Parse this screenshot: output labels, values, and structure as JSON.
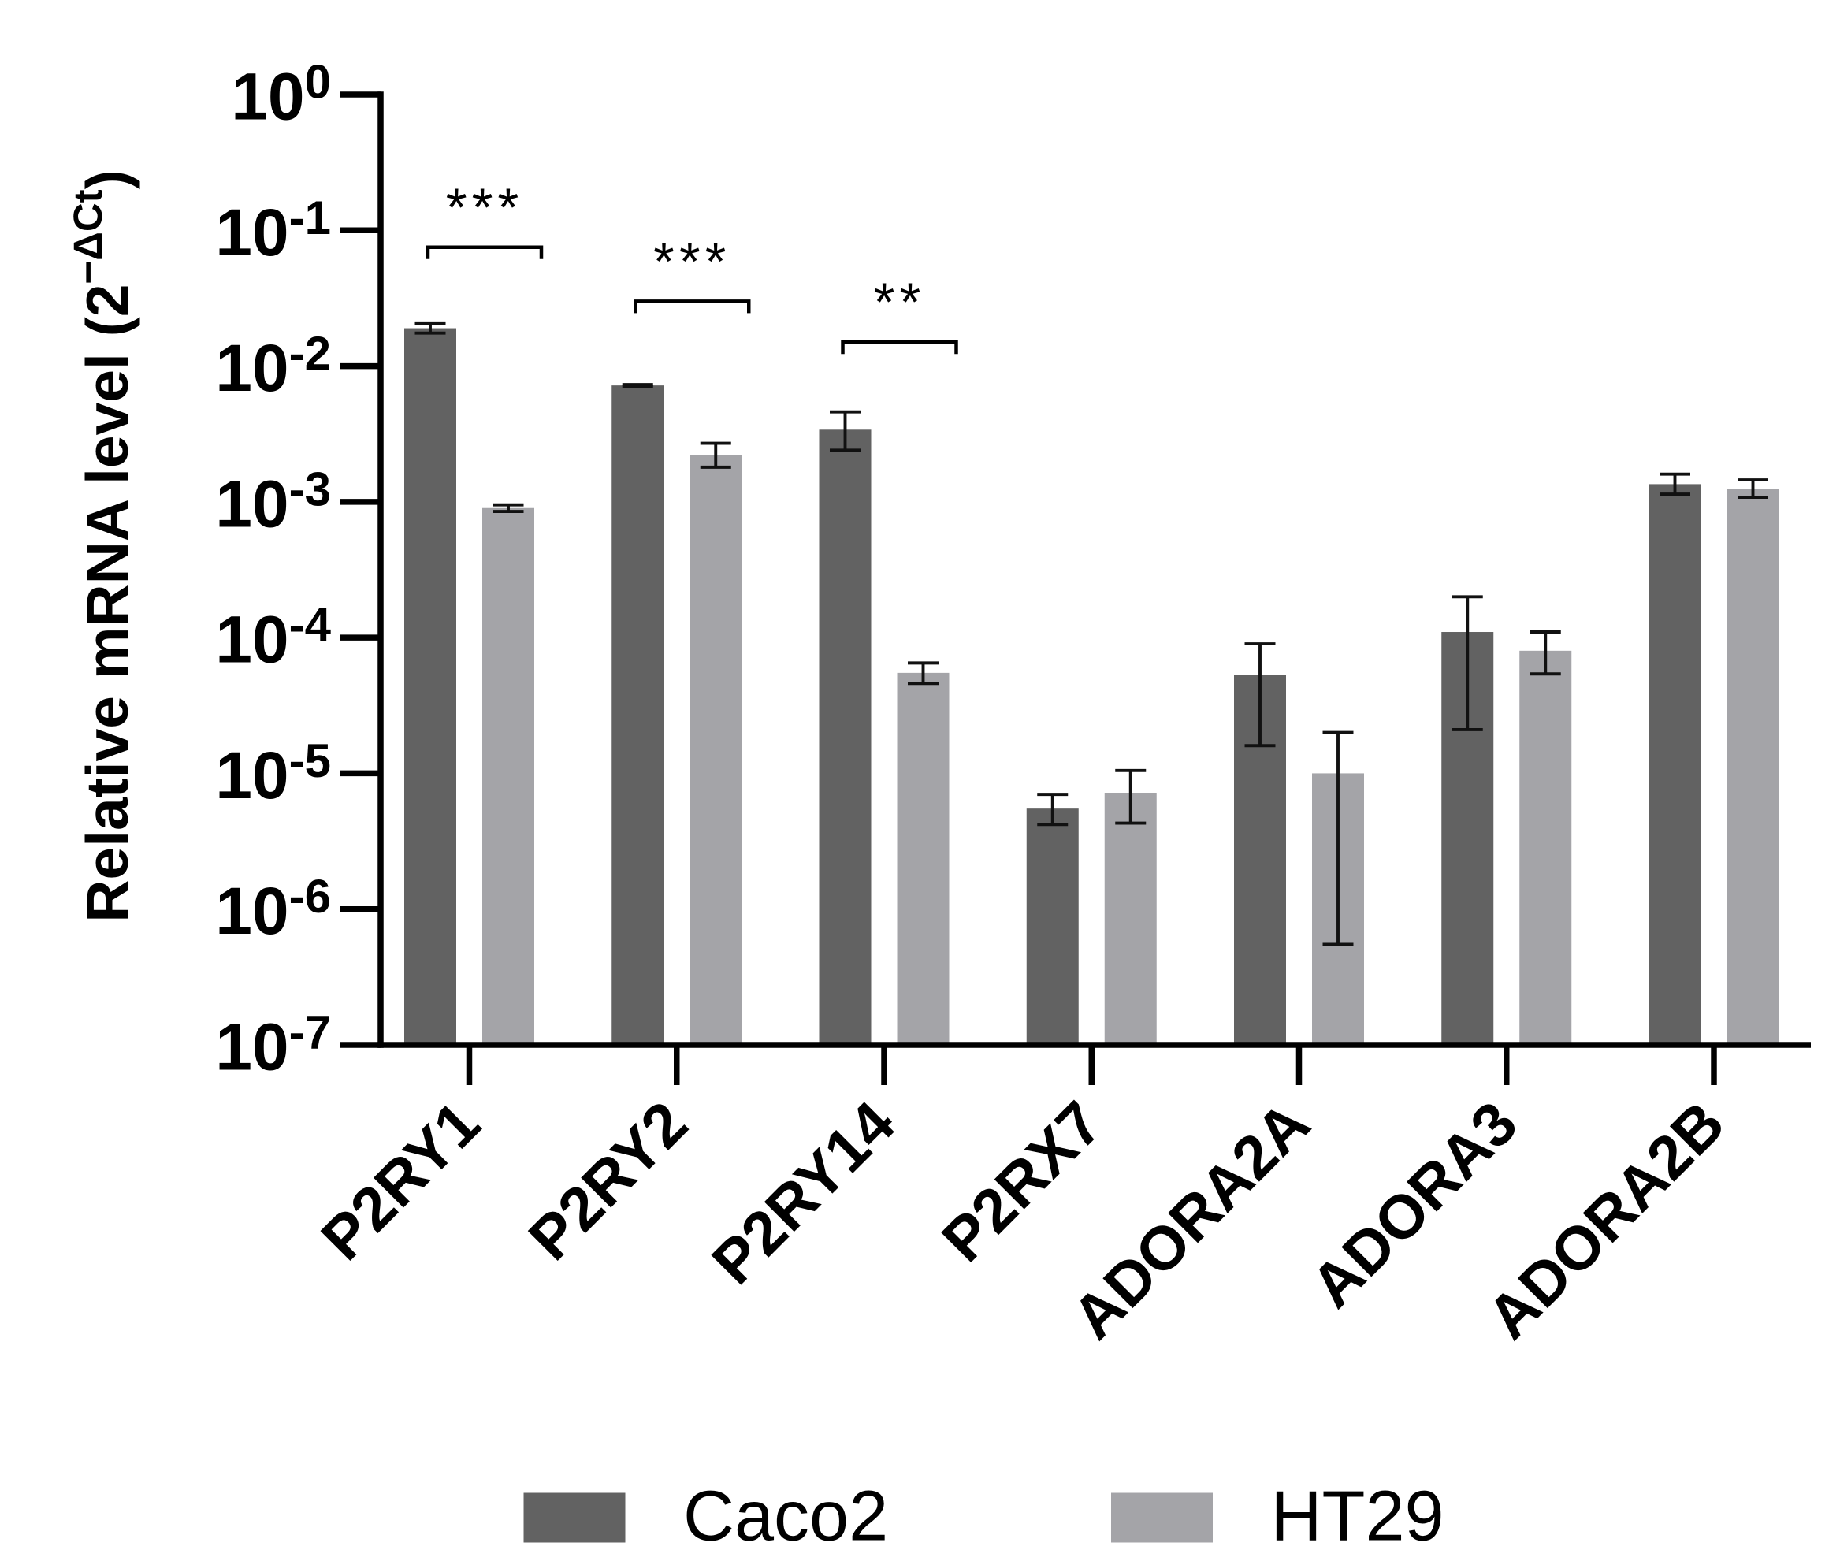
{
  "chart_data": {
    "type": "bar",
    "title": "",
    "xlabel": "",
    "ylabel": {
      "main": "Relative mRNA level (2",
      "superscript": "−ΔCt",
      "close": ")"
    },
    "yscale": "log10",
    "ylim": [
      1e-07,
      1
    ],
    "yticks": [
      {
        "base": "10",
        "exp": "0",
        "value": 1
      },
      {
        "base": "10",
        "exp": "-1",
        "value": 0.1
      },
      {
        "base": "10",
        "exp": "-2",
        "value": 0.01
      },
      {
        "base": "10",
        "exp": "-3",
        "value": 0.001
      },
      {
        "base": "10",
        "exp": "-4",
        "value": 0.0001
      },
      {
        "base": "10",
        "exp": "-5",
        "value": 1e-05
      },
      {
        "base": "10",
        "exp": "-6",
        "value": 1e-06
      },
      {
        "base": "10",
        "exp": "-7",
        "value": 1e-07
      }
    ],
    "categories": [
      "P2RY1",
      "P2RY2",
      "P2RY14",
      "P2RX7",
      "ADORA2A",
      "ADORA3",
      "ADORA2B"
    ],
    "series": [
      {
        "name": "Caco2",
        "color": "#626262",
        "values": [
          0.019,
          0.0072,
          0.0034,
          5.5e-06,
          5.3e-05,
          0.00011,
          0.00135
        ],
        "err_low": [
          0.0175,
          0.0071,
          0.0024,
          4.2e-06,
          1.6e-05,
          2.1e-05,
          0.00114
        ],
        "err_high": [
          0.0205,
          0.0073,
          0.0046,
          7e-06,
          9e-05,
          0.0002,
          0.0016
        ]
      },
      {
        "name": "HT29",
        "color": "#a4a4a8",
        "values": [
          0.0009,
          0.0022,
          5.5e-05,
          7.2e-06,
          1e-05,
          8e-05,
          0.00125
        ],
        "err_low": [
          0.00085,
          0.0018,
          4.6e-05,
          4.3e-06,
          5.5e-07,
          5.4e-05,
          0.00108
        ],
        "err_high": [
          0.00095,
          0.0027,
          6.5e-05,
          1.05e-05,
          2e-05,
          0.00011,
          0.00145
        ]
      }
    ],
    "significance": [
      {
        "category_index": 0,
        "label": "***",
        "bracket_value": 0.075
      },
      {
        "category_index": 1,
        "label": "***",
        "bracket_value": 0.03
      },
      {
        "category_index": 2,
        "label": "**",
        "bracket_value": 0.015
      }
    ],
    "legend": {
      "position": "bottom-center",
      "entries": [
        "Caco2",
        "HT29"
      ]
    }
  }
}
